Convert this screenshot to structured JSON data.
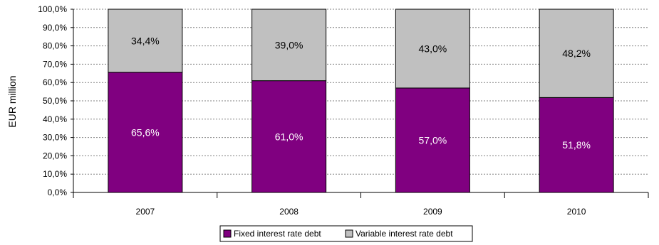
{
  "chart_data": {
    "type": "bar",
    "stacked": true,
    "percent": true,
    "ylabel": "EUR million",
    "xlabel": "",
    "ylim": [
      0,
      100
    ],
    "ytick_step": 10,
    "ytick_labels": [
      "0,0%",
      "10,0%",
      "20,0%",
      "30,0%",
      "40,0%",
      "50,0%",
      "60,0%",
      "70,0%",
      "80,0%",
      "90,0%",
      "100,0%"
    ],
    "grid": true,
    "categories": [
      "2007",
      "2008",
      "2009",
      "2010"
    ],
    "series": [
      {
        "name": "Fixed interest rate debt",
        "values": [
          65.6,
          61.0,
          57.0,
          51.8
        ],
        "labels": [
          "65,6%",
          "61,0%",
          "57,0%",
          "51,8%"
        ],
        "color": "#800080",
        "label_color": "#ffffff"
      },
      {
        "name": "Variable interest rate debt",
        "values": [
          34.4,
          39.0,
          43.0,
          48.2
        ],
        "labels": [
          "34,4%",
          "39,0%",
          "43,0%",
          "48,2%"
        ],
        "color": "#c0c0c0",
        "label_color": "#000000"
      }
    ],
    "legend_position": "bottom"
  }
}
